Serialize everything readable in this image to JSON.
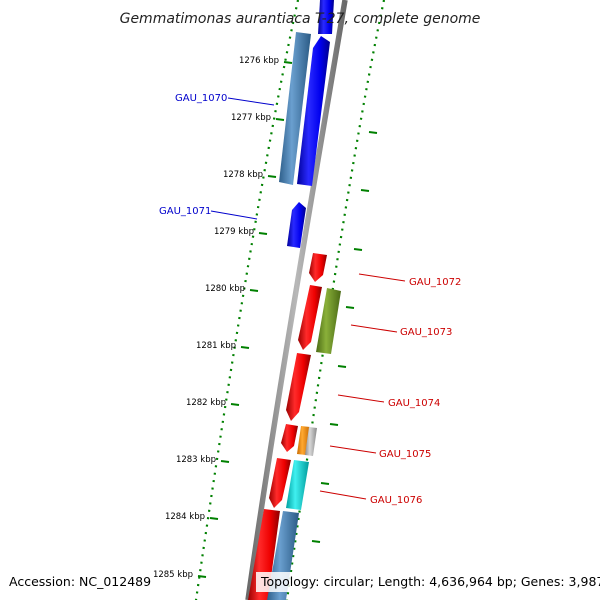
{
  "title": "Gemmatimonas aurantiaca T-27, complete genome",
  "accession": "Accession: NC_012489",
  "topology": "Topology: circular; Length: 4,636,964 bp; Genes: 3,987",
  "colors": {
    "forward_strand": "#0000ee",
    "reverse_strand": "#ee0000",
    "forward_label": "#0000cc",
    "reverse_label": "#cc0000",
    "steel_blue": "#4a7fb0",
    "olive": "#6b8e23",
    "cyan": "#00cccc",
    "orange": "#ff8c00",
    "grey": "#b0b0b0",
    "tick_green": "#008000",
    "backbone": "#808080"
  },
  "kbp_ticks": [
    "1276 kbp",
    "1277 kbp",
    "1278 kbp",
    "1279 kbp",
    "1280 kbp",
    "1281 kbp",
    "1282 kbp",
    "1283 kbp",
    "1284 kbp",
    "1285 kbp"
  ],
  "gene_labels": [
    {
      "name": "GAU_1070",
      "strand": "forward"
    },
    {
      "name": "GAU_1071",
      "strand": "forward"
    },
    {
      "name": "GAU_1072",
      "strand": "reverse"
    },
    {
      "name": "GAU_1073",
      "strand": "reverse"
    },
    {
      "name": "GAU_1074",
      "strand": "reverse"
    },
    {
      "name": "GAU_1075",
      "strand": "reverse"
    },
    {
      "name": "GAU_1076",
      "strand": "reverse"
    }
  ]
}
